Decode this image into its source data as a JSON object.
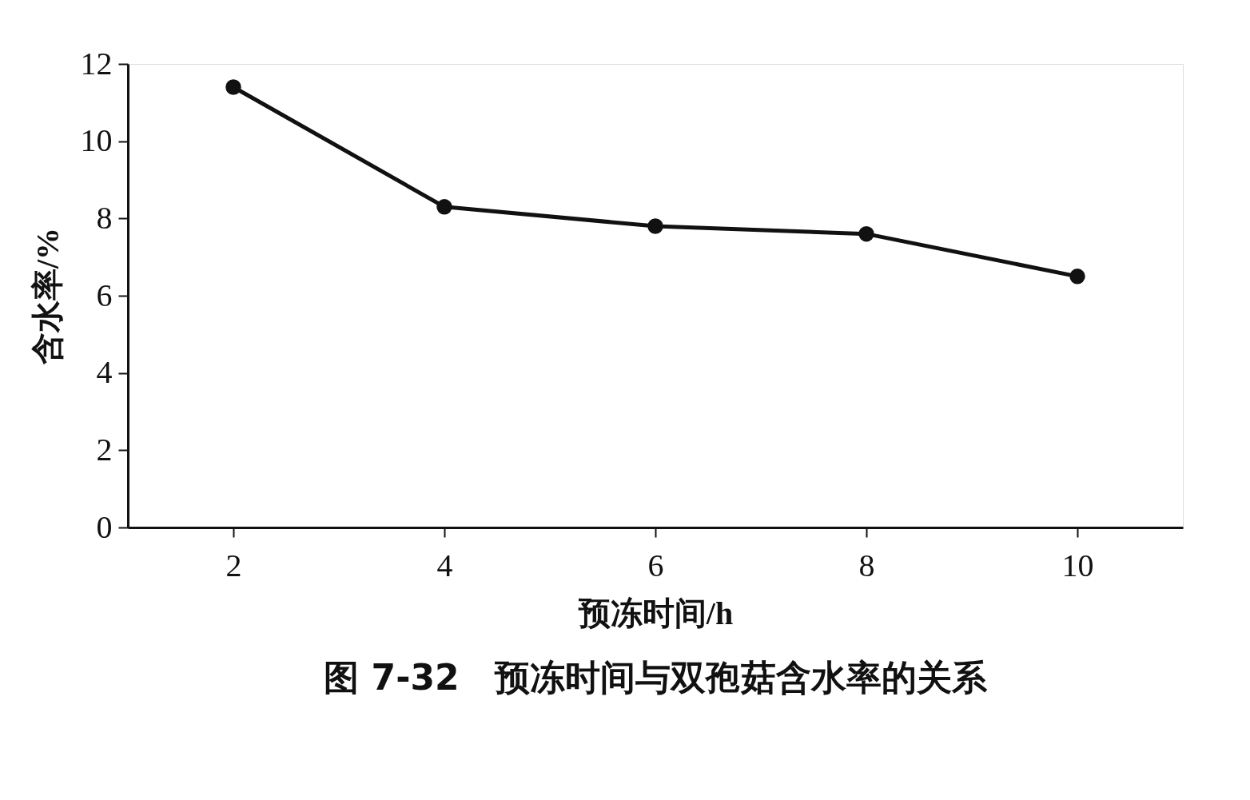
{
  "chart_data": {
    "type": "line",
    "title": "图 7-32　预冻时间与双孢菇含水率的关系",
    "xlabel": "预冻时间/h",
    "ylabel": "含水率/%",
    "x": [
      2,
      4,
      6,
      8,
      10
    ],
    "series": [
      {
        "color": "#111111",
        "values": [
          11.4,
          8.3,
          7.8,
          7.6,
          6.5
        ]
      }
    ],
    "xlim": [
      1,
      11
    ],
    "xticks": [
      2,
      4,
      6,
      8,
      10
    ],
    "ylim": [
      0,
      12
    ],
    "yticks": [
      0,
      2,
      4,
      6,
      8,
      10,
      12
    ],
    "grid": false,
    "marker": "circle",
    "line_style": "solid"
  }
}
